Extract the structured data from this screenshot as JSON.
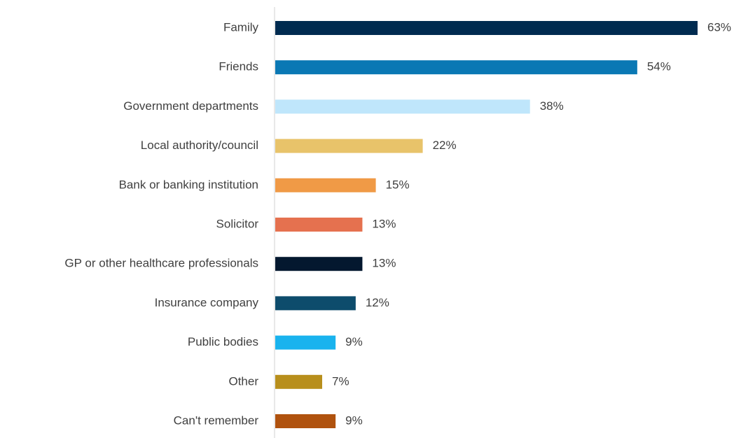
{
  "chart_data": {
    "type": "bar",
    "orientation": "horizontal",
    "categories": [
      "Family",
      "Friends",
      "Government departments",
      "Local authority/council",
      "Bank or banking institution",
      "Solicitor",
      "GP or other healthcare professionals",
      "Insurance company",
      "Public bodies",
      "Other",
      "Can't remember"
    ],
    "values": [
      63,
      54,
      38,
      22,
      15,
      13,
      13,
      12,
      9,
      7,
      9
    ],
    "value_labels": [
      "63%",
      "54%",
      "38%",
      "22%",
      "15%",
      "13%",
      "13%",
      "12%",
      "9%",
      "7%",
      "9%"
    ],
    "colors": [
      "#002b50",
      "#0a78b4",
      "#bfe6fb",
      "#e8c36a",
      "#f09a46",
      "#e5714f",
      "#04182f",
      "#0d4c6c",
      "#19b3ee",
      "#b88f1c",
      "#b0520e"
    ],
    "xlim": [
      0,
      63
    ]
  }
}
